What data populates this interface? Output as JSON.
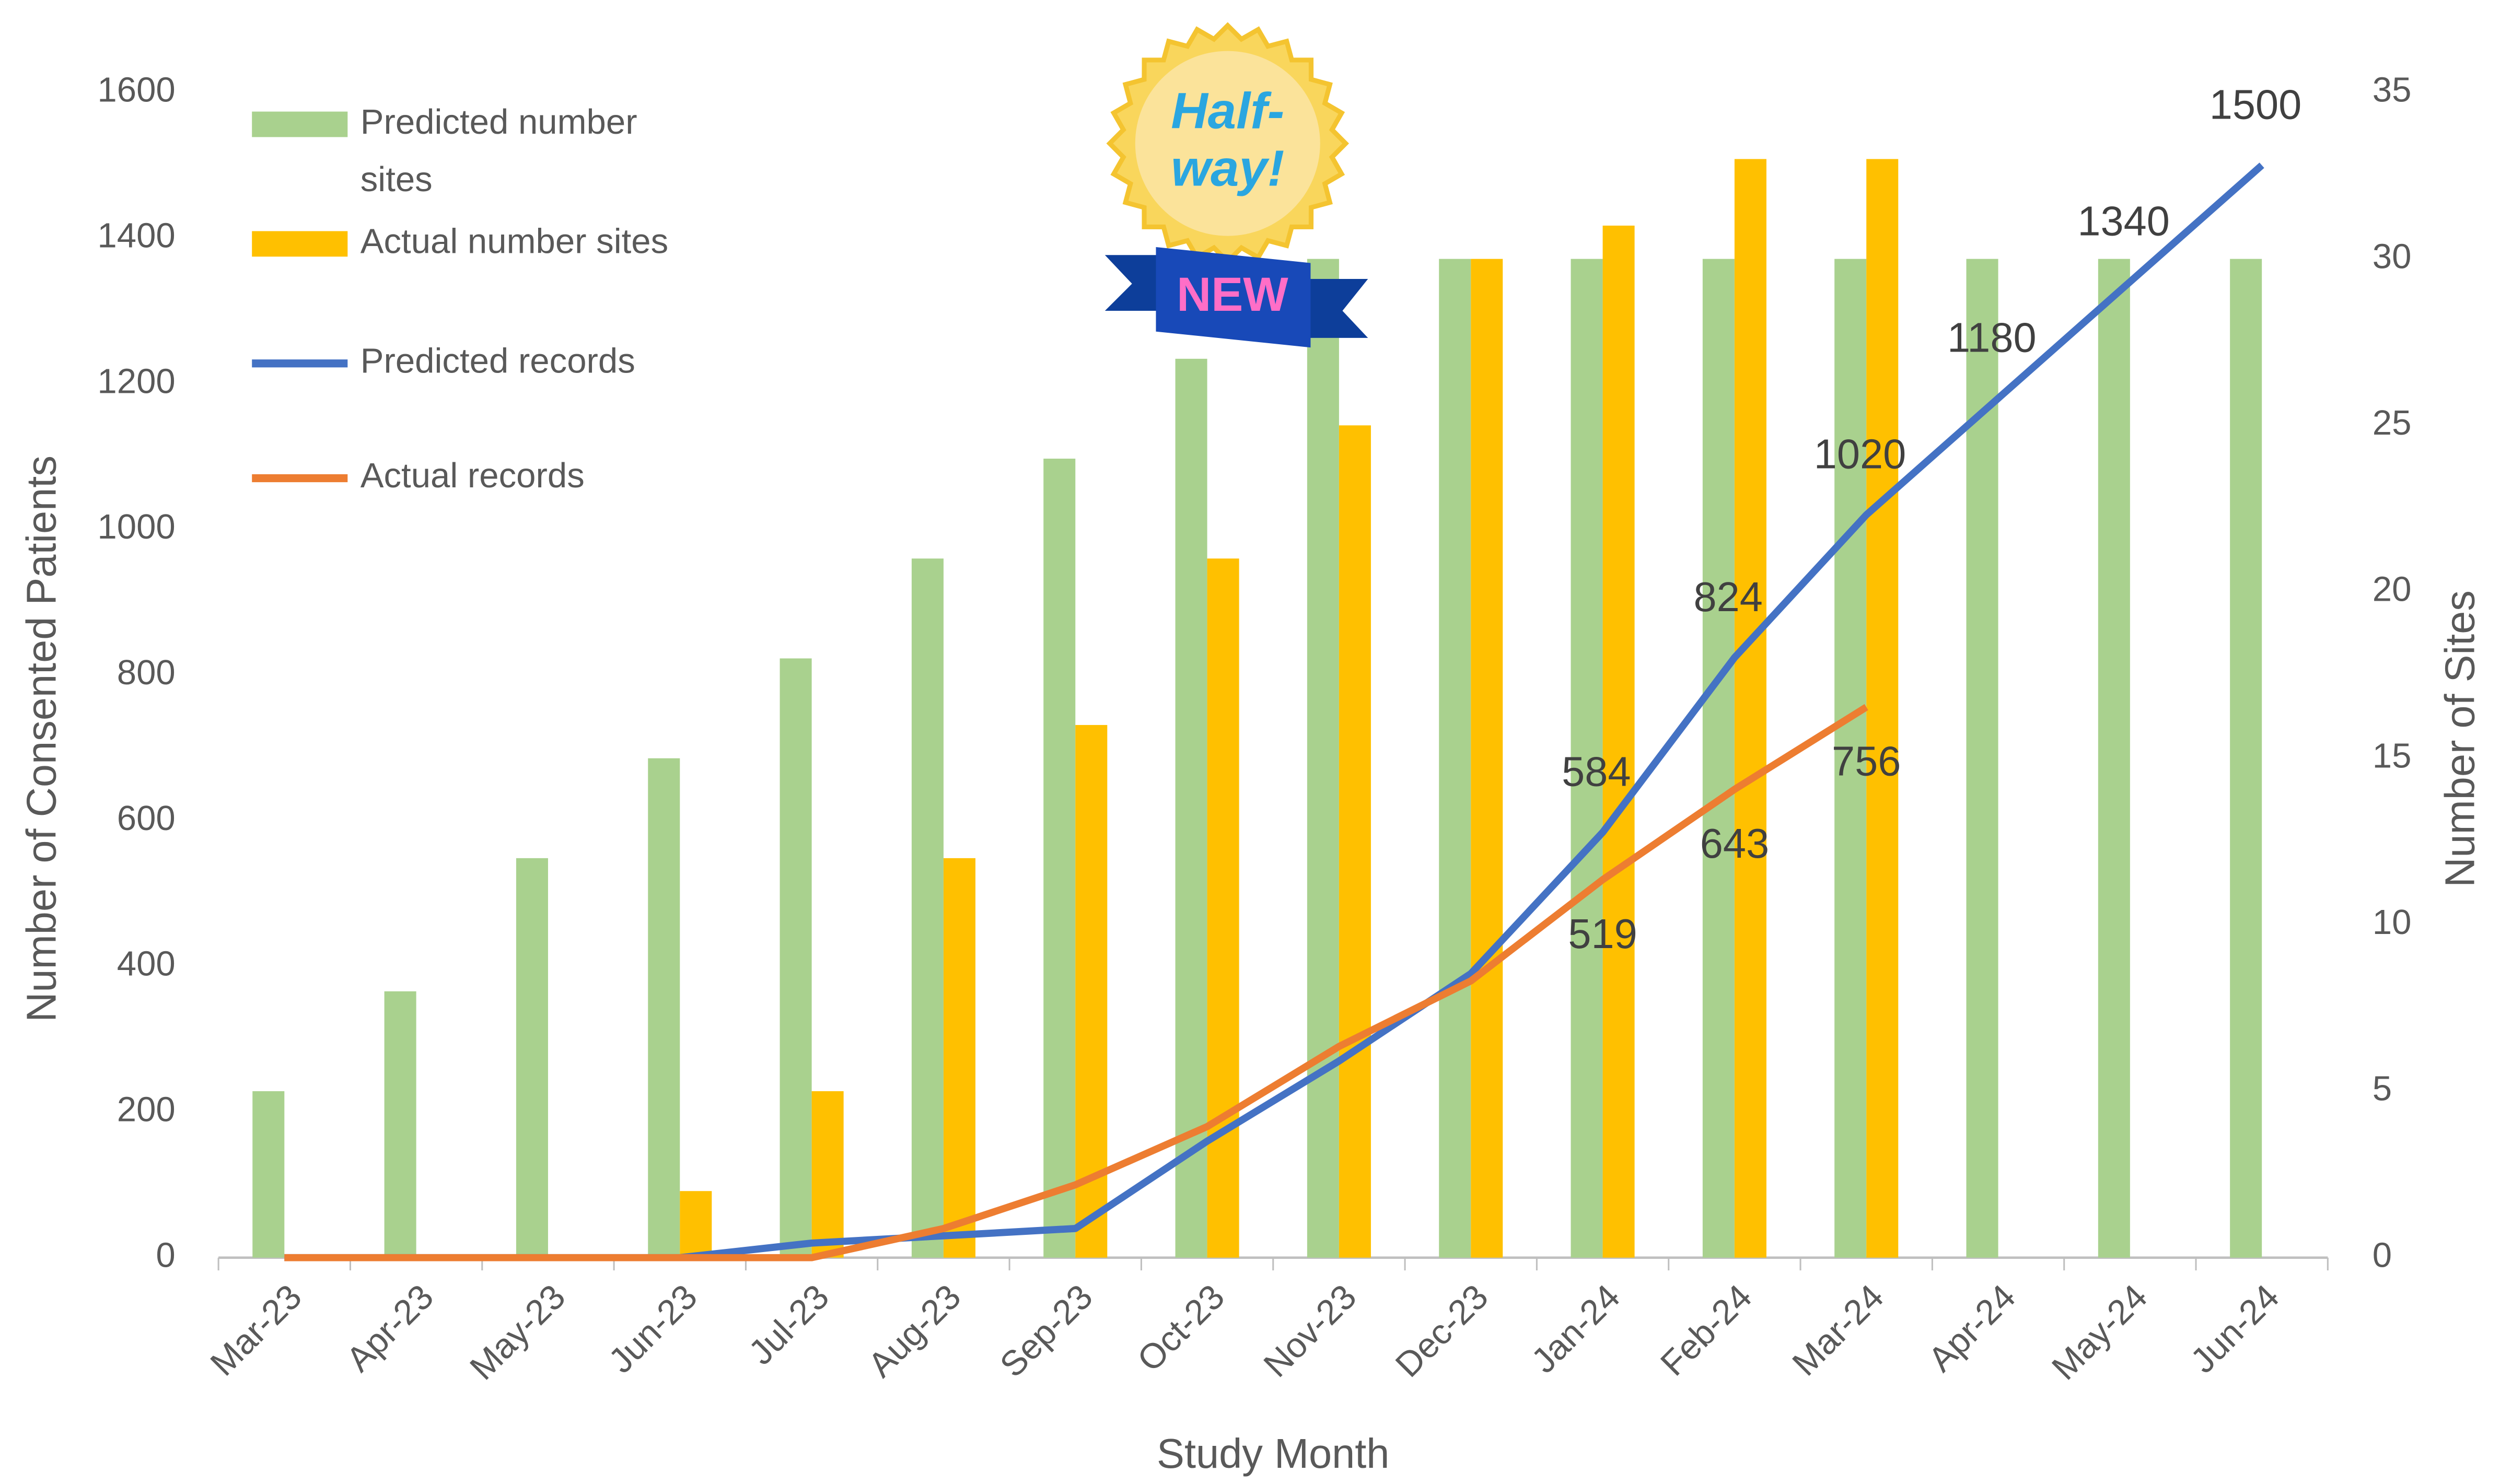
{
  "chart_data": {
    "type": "bar-line",
    "x_label": "Study Month",
    "y_label": "Number of Consented Patients",
    "y2_label": "Number of Sites",
    "categories": [
      "Mar-23",
      "Apr-23",
      "May-23",
      "Jun-23",
      "Jul-23",
      "Aug-23",
      "Sep-23",
      "Oct-23",
      "Nov-23",
      "Dec-23",
      "Jan-24",
      "Feb-24",
      "Mar-24",
      "Apr-24",
      "May-24",
      "Jun-24"
    ],
    "ylim": [
      0,
      1600
    ],
    "yticks": [
      0,
      200,
      400,
      600,
      800,
      1000,
      1200,
      1400,
      1600
    ],
    "y2lim": [
      0,
      35
    ],
    "y2ticks": [
      0,
      5,
      10,
      15,
      20,
      25,
      30,
      35
    ],
    "grid": false,
    "legend": "upper left",
    "series": [
      {
        "name": "Predicted number sites",
        "kind": "bar",
        "axis": "y2",
        "color": "#a9d18e",
        "values": [
          5,
          8,
          12,
          15,
          18,
          21,
          24,
          27,
          30,
          30,
          30,
          30,
          30,
          30,
          30,
          30
        ]
      },
      {
        "name": "Actual number sites",
        "kind": "bar",
        "axis": "y2",
        "color": "#ffc000",
        "values": [
          null,
          null,
          null,
          2,
          5,
          12,
          16,
          21,
          25,
          30,
          31,
          33,
          33,
          null,
          null,
          null
        ]
      },
      {
        "name": "Predicted records",
        "kind": "line",
        "color": "#4472c4",
        "values": [
          0,
          0,
          0,
          0,
          20,
          30,
          40,
          160,
          270,
          390,
          584,
          824,
          1020,
          1180,
          1340,
          1500
        ],
        "value_labels": [
          null,
          null,
          null,
          null,
          null,
          null,
          null,
          null,
          null,
          null,
          "584",
          "824",
          "1020",
          "1180",
          "1340",
          "1500"
        ]
      },
      {
        "name": "Actual records",
        "kind": "line",
        "color": "#ed7d31",
        "values": [
          0,
          0,
          0,
          0,
          0,
          40,
          100,
          180,
          290,
          380,
          519,
          643,
          756,
          null,
          null,
          null
        ],
        "value_labels": [
          null,
          null,
          null,
          null,
          null,
          null,
          null,
          null,
          null,
          null,
          "519",
          "643",
          "756",
          null,
          null,
          null
        ]
      }
    ]
  },
  "badge": {
    "lines": [
      "Half-",
      "way!"
    ],
    "ribbon": "NEW"
  }
}
